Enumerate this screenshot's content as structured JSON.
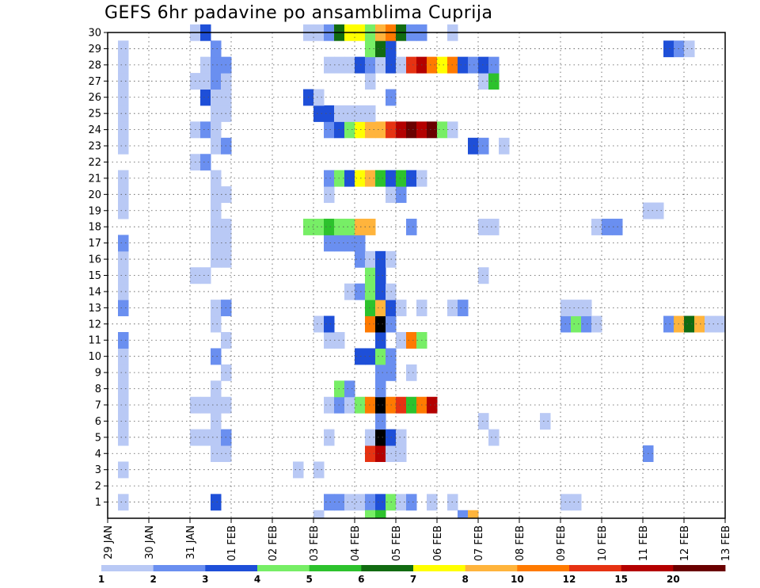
{
  "chart_data": {
    "type": "heatmap",
    "title": "GEFS 6hr padavine po ansamblima Cuprija",
    "x_tick_labels": [
      "29 JAN",
      "30 JAN",
      "31 JAN",
      "01 FEB",
      "02 FEB",
      "03 FEB",
      "04 FEB",
      "05 FEB",
      "06 FEB",
      "07 FEB",
      "08 FEB",
      "09 FEB",
      "10 FEB",
      "11 FEB",
      "12 FEB",
      "13 FEB"
    ],
    "y_tick_labels": [
      "1",
      "2",
      "3",
      "4",
      "5",
      "6",
      "7",
      "8",
      "9",
      "10",
      "11",
      "12",
      "13",
      "14",
      "15",
      "16",
      "17",
      "18",
      "19",
      "20",
      "21",
      "22",
      "23",
      "24",
      "25",
      "26",
      "27",
      "28",
      "29",
      "30"
    ],
    "x_range": [
      0,
      60
    ],
    "y_range": [
      0,
      30
    ],
    "grid": true,
    "colorbar": {
      "position": "bottom",
      "bounds": [
        "1",
        "2",
        "3",
        "4",
        "5",
        "6",
        "7",
        "8",
        "10",
        "12",
        "15",
        "20"
      ],
      "colors": [
        "#b9c9f5",
        "#6a8ff0",
        "#1e4fd8",
        "#77ee66",
        "#2dc22d",
        "#116b11",
        "#ffff00",
        "#ffb43c",
        "#ff7a00",
        "#e63212",
        "#b40000",
        "#6a0000"
      ]
    },
    "cells": [
      [
        1,
        1,
        1
      ],
      [
        1,
        10,
        3
      ],
      [
        1,
        21,
        2
      ],
      [
        1,
        22,
        2
      ],
      [
        1,
        23,
        1
      ],
      [
        1,
        24,
        1
      ],
      [
        1,
        25,
        2
      ],
      [
        1,
        26,
        3
      ],
      [
        1,
        27,
        4
      ],
      [
        1,
        28,
        1
      ],
      [
        1,
        29,
        2
      ],
      [
        1,
        31,
        1
      ],
      [
        1,
        33,
        1
      ],
      [
        1,
        44,
        1
      ],
      [
        1,
        45,
        1
      ],
      [
        3,
        1,
        1
      ],
      [
        3,
        18,
        1
      ],
      [
        3,
        20,
        1
      ],
      [
        4,
        10,
        1
      ],
      [
        4,
        11,
        1
      ],
      [
        4,
        25,
        10
      ],
      [
        4,
        26,
        11
      ],
      [
        4,
        27,
        1
      ],
      [
        4,
        28,
        1
      ],
      [
        4,
        52,
        2
      ],
      [
        5,
        1,
        1
      ],
      [
        5,
        8,
        1
      ],
      [
        5,
        9,
        1
      ],
      [
        5,
        10,
        1
      ],
      [
        5,
        11,
        2
      ],
      [
        5,
        21,
        1
      ],
      [
        5,
        25,
        1
      ],
      [
        5,
        26,
        13
      ],
      [
        5,
        27,
        3
      ],
      [
        5,
        28,
        1
      ],
      [
        5,
        37,
        1
      ],
      [
        6,
        1,
        1
      ],
      [
        6,
        10,
        1
      ],
      [
        6,
        26,
        2
      ],
      [
        6,
        36,
        1
      ],
      [
        6,
        42,
        1
      ],
      [
        7,
        1,
        1
      ],
      [
        7,
        8,
        1
      ],
      [
        7,
        9,
        1
      ],
      [
        7,
        10,
        1
      ],
      [
        7,
        11,
        1
      ],
      [
        7,
        21,
        1
      ],
      [
        7,
        22,
        2
      ],
      [
        7,
        23,
        1
      ],
      [
        7,
        24,
        4
      ],
      [
        7,
        25,
        9
      ],
      [
        7,
        26,
        13
      ],
      [
        7,
        27,
        9
      ],
      [
        7,
        28,
        10
      ],
      [
        7,
        29,
        5
      ],
      [
        7,
        30,
        9
      ],
      [
        7,
        31,
        11
      ],
      [
        8,
        1,
        1
      ],
      [
        8,
        10,
        1
      ],
      [
        8,
        22,
        4
      ],
      [
        8,
        23,
        2
      ],
      [
        8,
        26,
        2
      ],
      [
        9,
        1,
        1
      ],
      [
        9,
        11,
        1
      ],
      [
        9,
        26,
        2
      ],
      [
        9,
        27,
        2
      ],
      [
        9,
        29,
        1
      ],
      [
        10,
        1,
        1
      ],
      [
        10,
        10,
        2
      ],
      [
        10,
        24,
        3
      ],
      [
        10,
        25,
        3
      ],
      [
        10,
        26,
        4
      ],
      [
        10,
        27,
        2
      ],
      [
        11,
        1,
        2
      ],
      [
        11,
        11,
        1
      ],
      [
        11,
        21,
        1
      ],
      [
        11,
        22,
        1
      ],
      [
        11,
        26,
        3
      ],
      [
        11,
        28,
        1
      ],
      [
        11,
        29,
        9
      ],
      [
        11,
        30,
        4
      ],
      [
        12,
        10,
        1
      ],
      [
        12,
        20,
        1
      ],
      [
        12,
        21,
        3
      ],
      [
        12,
        25,
        9
      ],
      [
        12,
        26,
        13
      ],
      [
        12,
        27,
        2
      ],
      [
        12,
        44,
        2
      ],
      [
        12,
        45,
        4
      ],
      [
        12,
        46,
        2
      ],
      [
        12,
        47,
        1
      ],
      [
        12,
        54,
        2
      ],
      [
        12,
        55,
        8
      ],
      [
        12,
        56,
        6
      ],
      [
        12,
        57,
        8
      ],
      [
        12,
        58,
        1
      ],
      [
        12,
        59,
        1
      ],
      [
        13,
        1,
        2
      ],
      [
        13,
        10,
        1
      ],
      [
        13,
        11,
        2
      ],
      [
        13,
        25,
        5
      ],
      [
        13,
        26,
        8
      ],
      [
        13,
        27,
        3
      ],
      [
        13,
        28,
        1
      ],
      [
        13,
        30,
        1
      ],
      [
        13,
        33,
        1
      ],
      [
        13,
        34,
        2
      ],
      [
        13,
        44,
        1
      ],
      [
        13,
        45,
        1
      ],
      [
        13,
        46,
        1
      ],
      [
        14,
        1,
        1
      ],
      [
        14,
        23,
        1
      ],
      [
        14,
        24,
        2
      ],
      [
        14,
        25,
        4
      ],
      [
        14,
        26,
        3
      ],
      [
        14,
        27,
        1
      ],
      [
        15,
        1,
        1
      ],
      [
        15,
        8,
        1
      ],
      [
        15,
        9,
        1
      ],
      [
        15,
        25,
        4
      ],
      [
        15,
        26,
        3
      ],
      [
        15,
        36,
        1
      ],
      [
        16,
        1,
        1
      ],
      [
        16,
        10,
        1
      ],
      [
        16,
        11,
        1
      ],
      [
        16,
        24,
        2
      ],
      [
        16,
        25,
        1
      ],
      [
        16,
        26,
        3
      ],
      [
        16,
        27,
        1
      ],
      [
        17,
        1,
        2
      ],
      [
        17,
        10,
        1
      ],
      [
        17,
        11,
        1
      ],
      [
        17,
        21,
        2
      ],
      [
        17,
        22,
        2
      ],
      [
        17,
        23,
        2
      ],
      [
        17,
        24,
        2
      ],
      [
        18,
        10,
        1
      ],
      [
        18,
        11,
        1
      ],
      [
        18,
        19,
        4
      ],
      [
        18,
        20,
        4
      ],
      [
        18,
        21,
        5
      ],
      [
        18,
        22,
        4
      ],
      [
        18,
        23,
        4
      ],
      [
        18,
        24,
        8
      ],
      [
        18,
        25,
        8
      ],
      [
        18,
        29,
        2
      ],
      [
        18,
        36,
        1
      ],
      [
        18,
        37,
        1
      ],
      [
        18,
        47,
        1
      ],
      [
        18,
        48,
        2
      ],
      [
        18,
        49,
        2
      ],
      [
        19,
        1,
        1
      ],
      [
        19,
        10,
        1
      ],
      [
        19,
        52,
        1
      ],
      [
        19,
        53,
        1
      ],
      [
        20,
        1,
        1
      ],
      [
        20,
        10,
        1
      ],
      [
        20,
        11,
        1
      ],
      [
        20,
        21,
        1
      ],
      [
        20,
        27,
        1
      ],
      [
        20,
        28,
        2
      ],
      [
        21,
        1,
        1
      ],
      [
        21,
        10,
        1
      ],
      [
        21,
        21,
        2
      ],
      [
        21,
        22,
        4
      ],
      [
        21,
        23,
        3
      ],
      [
        21,
        24,
        7
      ],
      [
        21,
        25,
        8
      ],
      [
        21,
        26,
        5
      ],
      [
        21,
        27,
        3
      ],
      [
        21,
        28,
        5
      ],
      [
        21,
        29,
        3
      ],
      [
        21,
        30,
        1
      ],
      [
        22,
        8,
        1
      ],
      [
        22,
        9,
        2
      ],
      [
        23,
        1,
        1
      ],
      [
        23,
        10,
        1
      ],
      [
        23,
        11,
        2
      ],
      [
        23,
        35,
        3
      ],
      [
        23,
        36,
        2
      ],
      [
        23,
        38,
        1
      ],
      [
        24,
        1,
        1
      ],
      [
        24,
        8,
        1
      ],
      [
        24,
        9,
        2
      ],
      [
        24,
        10,
        1
      ],
      [
        24,
        21,
        2
      ],
      [
        24,
        22,
        3
      ],
      [
        24,
        23,
        4
      ],
      [
        24,
        24,
        7
      ],
      [
        24,
        25,
        8
      ],
      [
        24,
        26,
        8
      ],
      [
        24,
        27,
        10
      ],
      [
        24,
        28,
        11
      ],
      [
        24,
        29,
        12
      ],
      [
        24,
        30,
        11
      ],
      [
        24,
        31,
        12
      ],
      [
        24,
        32,
        4
      ],
      [
        24,
        33,
        1
      ],
      [
        25,
        1,
        1
      ],
      [
        25,
        10,
        1
      ],
      [
        25,
        11,
        1
      ],
      [
        25,
        20,
        3
      ],
      [
        25,
        21,
        3
      ],
      [
        25,
        22,
        1
      ],
      [
        25,
        23,
        1
      ],
      [
        25,
        24,
        1
      ],
      [
        25,
        25,
        1
      ],
      [
        26,
        1,
        1
      ],
      [
        26,
        9,
        3
      ],
      [
        26,
        10,
        1
      ],
      [
        26,
        11,
        1
      ],
      [
        26,
        19,
        3
      ],
      [
        26,
        20,
        1
      ],
      [
        26,
        27,
        2
      ],
      [
        27,
        1,
        1
      ],
      [
        27,
        8,
        1
      ],
      [
        27,
        9,
        1
      ],
      [
        27,
        10,
        2
      ],
      [
        27,
        11,
        1
      ],
      [
        27,
        25,
        1
      ],
      [
        27,
        36,
        1
      ],
      [
        27,
        37,
        5
      ],
      [
        28,
        1,
        1
      ],
      [
        28,
        9,
        1
      ],
      [
        28,
        10,
        2
      ],
      [
        28,
        11,
        2
      ],
      [
        28,
        21,
        1
      ],
      [
        28,
        22,
        1
      ],
      [
        28,
        23,
        1
      ],
      [
        28,
        24,
        3
      ],
      [
        28,
        25,
        2
      ],
      [
        28,
        26,
        1
      ],
      [
        28,
        27,
        3
      ],
      [
        28,
        28,
        1
      ],
      [
        28,
        29,
        10
      ],
      [
        28,
        30,
        11
      ],
      [
        28,
        31,
        9
      ],
      [
        28,
        32,
        7
      ],
      [
        28,
        33,
        9
      ],
      [
        28,
        34,
        3
      ],
      [
        28,
        35,
        2
      ],
      [
        28,
        36,
        3
      ],
      [
        28,
        37,
        2
      ],
      [
        29,
        1,
        1
      ],
      [
        29,
        10,
        2
      ],
      [
        29,
        25,
        4
      ],
      [
        29,
        26,
        6
      ],
      [
        29,
        27,
        3
      ],
      [
        29,
        54,
        3
      ],
      [
        29,
        55,
        2
      ],
      [
        29,
        56,
        1
      ],
      [
        30,
        8,
        1
      ],
      [
        30,
        9,
        3
      ],
      [
        30,
        19,
        1
      ],
      [
        30,
        20,
        1
      ],
      [
        30,
        21,
        2
      ],
      [
        30,
        22,
        6
      ],
      [
        30,
        23,
        7
      ],
      [
        30,
        24,
        7
      ],
      [
        30,
        25,
        4
      ],
      [
        30,
        26,
        8
      ],
      [
        30,
        27,
        9
      ],
      [
        30,
        28,
        6
      ],
      [
        30,
        29,
        2
      ],
      [
        30,
        30,
        2
      ],
      [
        30,
        33,
        1
      ],
      [
        0,
        25,
        4
      ],
      [
        0,
        26,
        5
      ],
      [
        0,
        34,
        2
      ],
      [
        0,
        35,
        8
      ],
      [
        0,
        20,
        1
      ]
    ]
  }
}
